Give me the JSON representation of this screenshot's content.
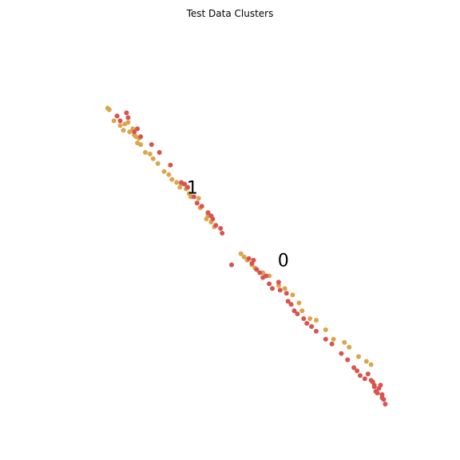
{
  "chart_data": {
    "type": "scatter",
    "title": "Test Data Clusters",
    "xlabel": "",
    "ylabel": "",
    "axes_visible": false,
    "grid": false,
    "xlim": [
      -5.5,
      5.5
    ],
    "ylim": [
      -5.5,
      5.5
    ],
    "colors": {
      "red": "#d9534f",
      "orange": "#dca54c"
    },
    "cluster_labels": [
      {
        "text": "1",
        "x": -1.2,
        "y": 1.3
      },
      {
        "text": "0",
        "x": 1.7,
        "y": -1.0
      }
    ],
    "series": [
      {
        "color": "#dca54c",
        "x": [
          -3.9,
          -3.85,
          -3.6,
          -3.7,
          -3.35,
          -3.25,
          -3.2,
          -3.5,
          -3.4,
          -3.1,
          -3.0,
          -3.05,
          -2.9,
          -2.95,
          -2.85,
          -2.7,
          -2.55,
          -2.45,
          -2.3,
          -2.1,
          -1.95,
          -1.85,
          -1.7,
          -1.6,
          -1.55,
          -1.4,
          -1.3,
          -1.25,
          -1.0,
          -1.05,
          -0.95,
          -0.7,
          -0.75,
          -0.6,
          -0.5,
          0.35,
          0.45,
          0.55,
          0.7,
          0.8,
          1.05,
          1.25,
          1.55,
          1.75,
          2.0,
          2.2,
          2.3,
          2.55,
          2.75,
          3.05,
          3.3,
          3.65,
          3.8,
          4.1,
          4.35,
          4.5
        ],
        "y": [
          3.85,
          3.8,
          3.6,
          3.45,
          3.35,
          3.4,
          3.1,
          3.3,
          3.15,
          3.2,
          2.95,
          3.0,
          2.9,
          2.75,
          2.7,
          2.45,
          2.4,
          2.25,
          2.1,
          1.85,
          1.75,
          1.6,
          1.5,
          1.35,
          1.45,
          1.3,
          1.15,
          1.05,
          1.0,
          0.85,
          0.7,
          0.45,
          0.35,
          0.25,
          0.1,
          -0.75,
          -0.85,
          -0.95,
          -1.1,
          -1.2,
          -1.35,
          -1.45,
          -1.75,
          -1.85,
          -2.05,
          -2.3,
          -2.55,
          -2.8,
          -2.85,
          -3.15,
          -3.45,
          -3.55,
          -3.7,
          -4.0,
          -4.15,
          -4.25
        ]
      },
      {
        "color": "#d9534f",
        "x": [
          -3.6,
          -3.5,
          -3.25,
          -3.3,
          -3.05,
          -2.95,
          -2.85,
          -2.5,
          -2.25,
          -1.9,
          -1.55,
          -1.45,
          -1.35,
          -1.15,
          -1.05,
          -0.9,
          -0.7,
          -0.6,
          -0.55,
          -0.45,
          -0.25,
          -0.3,
          0.6,
          0.7,
          0.75,
          0.85,
          0.95,
          1.05,
          1.15,
          1.25,
          1.35,
          1.55,
          1.6,
          1.8,
          1.85,
          1.95,
          2.05,
          2.15,
          2.35,
          2.45,
          2.6,
          2.75,
          3.05,
          3.25,
          3.55,
          3.75,
          3.95,
          4.05,
          4.15,
          4.3,
          4.4,
          4.55,
          4.6,
          4.65,
          4.75,
          4.8,
          4.85,
          4.9,
          4.95,
          4.85,
          4.7,
          4.6,
          4.5
        ],
        "y": [
          3.6,
          3.45,
          3.55,
          3.7,
          3.1,
          3.2,
          2.95,
          2.7,
          2.45,
          2.05,
          1.5,
          1.45,
          1.35,
          1.05,
          0.85,
          0.75,
          0.55,
          0.45,
          0.35,
          0.15,
          -0.1,
          0.05,
          -0.9,
          -1.05,
          -0.95,
          -1.25,
          -1.35,
          -1.5,
          -1.45,
          -1.7,
          -1.85,
          -1.65,
          -1.9,
          -2.0,
          -2.25,
          -2.35,
          -2.55,
          -2.65,
          -2.8,
          -2.95,
          -3.05,
          -3.2,
          -3.45,
          -3.6,
          -3.9,
          -4.1,
          -4.35,
          -4.45,
          -4.6,
          -4.7,
          -4.55,
          -4.8,
          -4.95,
          -5.1,
          -5.0,
          -4.9,
          -5.2,
          -5.35,
          -5.5,
          -5.3,
          -5.15,
          -4.9,
          -4.75
        ]
      },
      {
        "color": "#d9534f",
        "x": [
          0.05
        ],
        "y": [
          -1.1
        ]
      }
    ]
  }
}
